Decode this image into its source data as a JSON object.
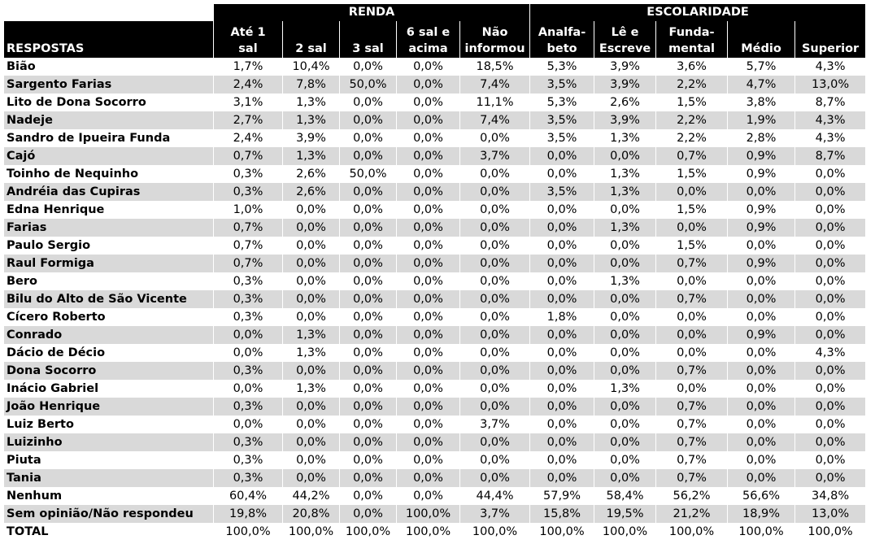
{
  "groups": {
    "renda": "RENDA",
    "escolaridade": "ESCOLARIDADE"
  },
  "columns": [
    {
      "l1": "",
      "l2": "RESPOSTAS"
    },
    {
      "l1": "Até 1",
      "l2": "sal"
    },
    {
      "l1": "",
      "l2": "2 sal"
    },
    {
      "l1": "",
      "l2": "3 sal"
    },
    {
      "l1": "6 sal e",
      "l2": "acima"
    },
    {
      "l1": "Não",
      "l2": "informou"
    },
    {
      "l1": "Analfa-",
      "l2": "beto"
    },
    {
      "l1": "Lê e",
      "l2": "Escreve"
    },
    {
      "l1": "Funda-",
      "l2": "mental"
    },
    {
      "l1": "",
      "l2": "Médio"
    },
    {
      "l1": "",
      "l2": "Superior"
    }
  ],
  "rows": [
    [
      "Bião",
      "1,7%",
      "10,4%",
      "0,0%",
      "0,0%",
      "18,5%",
      "5,3%",
      "3,9%",
      "3,6%",
      "5,7%",
      "4,3%"
    ],
    [
      "Sargento Farias",
      "2,4%",
      "7,8%",
      "50,0%",
      "0,0%",
      "7,4%",
      "3,5%",
      "3,9%",
      "2,2%",
      "4,7%",
      "13,0%"
    ],
    [
      "Lito de Dona Socorro",
      "3,1%",
      "1,3%",
      "0,0%",
      "0,0%",
      "11,1%",
      "5,3%",
      "2,6%",
      "1,5%",
      "3,8%",
      "8,7%"
    ],
    [
      "Nadeje",
      "2,7%",
      "1,3%",
      "0,0%",
      "0,0%",
      "7,4%",
      "3,5%",
      "3,9%",
      "2,2%",
      "1,9%",
      "4,3%"
    ],
    [
      "Sandro de Ipueira Funda",
      "2,4%",
      "3,9%",
      "0,0%",
      "0,0%",
      "0,0%",
      "3,5%",
      "1,3%",
      "2,2%",
      "2,8%",
      "4,3%"
    ],
    [
      "Cajó",
      "0,7%",
      "1,3%",
      "0,0%",
      "0,0%",
      "3,7%",
      "0,0%",
      "0,0%",
      "0,7%",
      "0,9%",
      "8,7%"
    ],
    [
      "Toinho de Nequinho",
      "0,3%",
      "2,6%",
      "50,0%",
      "0,0%",
      "0,0%",
      "0,0%",
      "1,3%",
      "1,5%",
      "0,9%",
      "0,0%"
    ],
    [
      "Andréia das Cupiras",
      "0,3%",
      "2,6%",
      "0,0%",
      "0,0%",
      "0,0%",
      "3,5%",
      "1,3%",
      "0,0%",
      "0,0%",
      "0,0%"
    ],
    [
      "Edna Henrique",
      "1,0%",
      "0,0%",
      "0,0%",
      "0,0%",
      "0,0%",
      "0,0%",
      "0,0%",
      "1,5%",
      "0,9%",
      "0,0%"
    ],
    [
      "Farias",
      "0,7%",
      "0,0%",
      "0,0%",
      "0,0%",
      "0,0%",
      "0,0%",
      "1,3%",
      "0,0%",
      "0,9%",
      "0,0%"
    ],
    [
      "Paulo Sergio",
      "0,7%",
      "0,0%",
      "0,0%",
      "0,0%",
      "0,0%",
      "0,0%",
      "0,0%",
      "1,5%",
      "0,0%",
      "0,0%"
    ],
    [
      "Raul Formiga",
      "0,7%",
      "0,0%",
      "0,0%",
      "0,0%",
      "0,0%",
      "0,0%",
      "0,0%",
      "0,7%",
      "0,9%",
      "0,0%"
    ],
    [
      "Bero",
      "0,3%",
      "0,0%",
      "0,0%",
      "0,0%",
      "0,0%",
      "0,0%",
      "1,3%",
      "0,0%",
      "0,0%",
      "0,0%"
    ],
    [
      "Bilu do Alto de São Vicente",
      "0,3%",
      "0,0%",
      "0,0%",
      "0,0%",
      "0,0%",
      "0,0%",
      "0,0%",
      "0,7%",
      "0,0%",
      "0,0%"
    ],
    [
      "Cícero Roberto",
      "0,3%",
      "0,0%",
      "0,0%",
      "0,0%",
      "0,0%",
      "1,8%",
      "0,0%",
      "0,0%",
      "0,0%",
      "0,0%"
    ],
    [
      "Conrado",
      "0,0%",
      "1,3%",
      "0,0%",
      "0,0%",
      "0,0%",
      "0,0%",
      "0,0%",
      "0,0%",
      "0,9%",
      "0,0%"
    ],
    [
      "Dácio de Décio",
      "0,0%",
      "1,3%",
      "0,0%",
      "0,0%",
      "0,0%",
      "0,0%",
      "0,0%",
      "0,0%",
      "0,0%",
      "4,3%"
    ],
    [
      "Dona Socorro",
      "0,3%",
      "0,0%",
      "0,0%",
      "0,0%",
      "0,0%",
      "0,0%",
      "0,0%",
      "0,7%",
      "0,0%",
      "0,0%"
    ],
    [
      "Inácio Gabriel",
      "0,0%",
      "1,3%",
      "0,0%",
      "0,0%",
      "0,0%",
      "0,0%",
      "1,3%",
      "0,0%",
      "0,0%",
      "0,0%"
    ],
    [
      "João Henrique",
      "0,3%",
      "0,0%",
      "0,0%",
      "0,0%",
      "0,0%",
      "0,0%",
      "0,0%",
      "0,7%",
      "0,0%",
      "0,0%"
    ],
    [
      "Luiz Berto",
      "0,0%",
      "0,0%",
      "0,0%",
      "0,0%",
      "3,7%",
      "0,0%",
      "0,0%",
      "0,7%",
      "0,0%",
      "0,0%"
    ],
    [
      "Luizinho",
      "0,3%",
      "0,0%",
      "0,0%",
      "0,0%",
      "0,0%",
      "0,0%",
      "0,0%",
      "0,7%",
      "0,0%",
      "0,0%"
    ],
    [
      "Piuta",
      "0,3%",
      "0,0%",
      "0,0%",
      "0,0%",
      "0,0%",
      "0,0%",
      "0,0%",
      "0,7%",
      "0,0%",
      "0,0%"
    ],
    [
      "Tania",
      "0,3%",
      "0,0%",
      "0,0%",
      "0,0%",
      "0,0%",
      "0,0%",
      "0,0%",
      "0,7%",
      "0,0%",
      "0,0%"
    ],
    [
      "Nenhum",
      "60,4%",
      "44,2%",
      "0,0%",
      "0,0%",
      "44,4%",
      "57,9%",
      "58,4%",
      "56,2%",
      "56,6%",
      "34,8%"
    ],
    [
      "Sem opinião/Não respondeu",
      "19,8%",
      "20,8%",
      "0,0%",
      "100,0%",
      "3,7%",
      "15,8%",
      "19,5%",
      "21,2%",
      "18,9%",
      "13,0%"
    ],
    [
      "TOTAL",
      "100,0%",
      "100,0%",
      "100,0%",
      "100,0%",
      "100,0%",
      "100,0%",
      "100,0%",
      "100,0%",
      "100,0%",
      "100,0%"
    ]
  ]
}
